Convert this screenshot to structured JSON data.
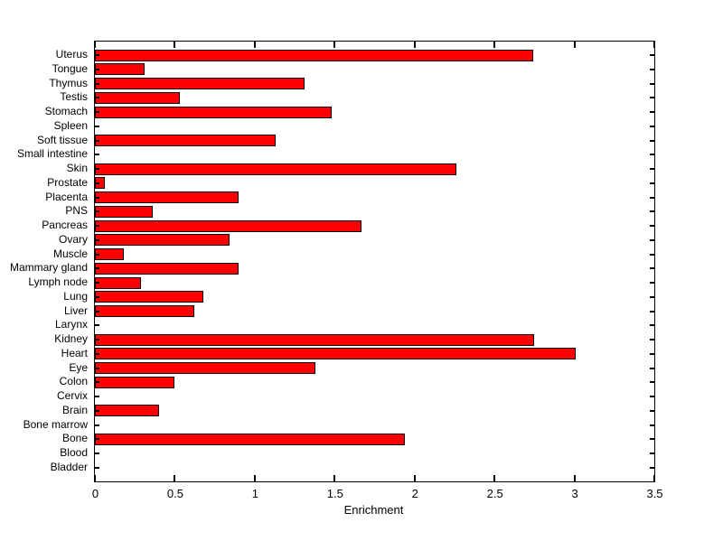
{
  "chart_data": {
    "type": "bar",
    "orientation": "horizontal",
    "title": "",
    "xlabel": "Enrichment",
    "ylabel": "",
    "xlim": [
      0,
      3.5
    ],
    "xticks": [
      0,
      0.5,
      1,
      1.5,
      2,
      2.5,
      3,
      3.5
    ],
    "xtick_labels": [
      "0",
      "0.5",
      "1",
      "1.5",
      "2",
      "2.5",
      "3",
      "3.5"
    ],
    "grid": "off",
    "legend": "none",
    "bar_color": "#ff0000",
    "bar_edge_color": "#000000",
    "background_color": "#ffffff",
    "categories_top_to_bottom": [
      "Uterus",
      "Tongue",
      "Thymus",
      "Testis",
      "Stomach",
      "Spleen",
      "Soft tissue",
      "Small intestine",
      "Skin",
      "Prostate",
      "Placenta",
      "PNS",
      "Pancreas",
      "Ovary",
      "Muscle",
      "Mammary gland",
      "Lymph node",
      "Lung",
      "Liver",
      "Larynx",
      "Kidney",
      "Heart",
      "Eye",
      "Colon",
      "Cervix",
      "Brain",
      "Bone marrow",
      "Bone",
      "Blood",
      "Bladder"
    ],
    "values": [
      2.74,
      0.31,
      1.31,
      0.53,
      1.48,
      0,
      1.13,
      0,
      2.26,
      0.06,
      0.9,
      0.36,
      1.67,
      0.84,
      0.18,
      0.9,
      0.29,
      0.68,
      0.62,
      0,
      2.75,
      3.01,
      1.38,
      0.5,
      0,
      0.4,
      0,
      1.94,
      0,
      0
    ]
  }
}
